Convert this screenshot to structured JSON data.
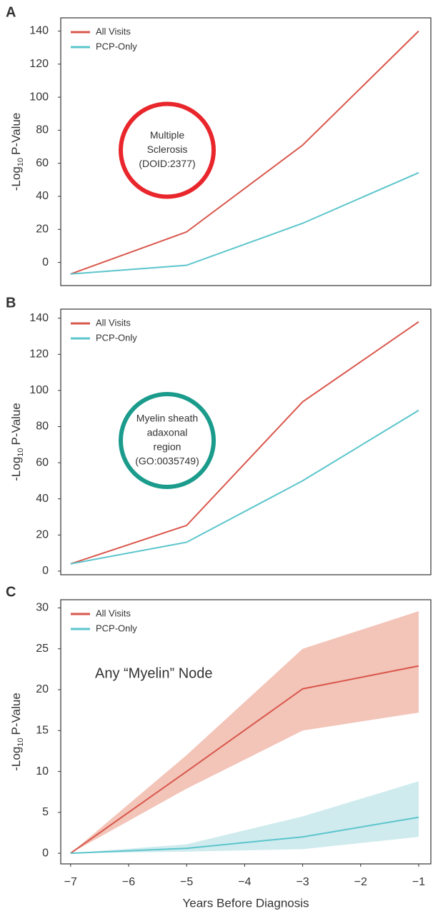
{
  "chart_data": [
    {
      "type": "line",
      "panel": "A",
      "x": [
        -7,
        -5,
        -3,
        -1
      ],
      "xlim": [
        -7.17,
        -0.79
      ],
      "ylim": [
        -14,
        148
      ],
      "yticks": [
        0,
        20,
        40,
        60,
        80,
        100,
        120,
        140
      ],
      "ylabel": {
        "base": "-Log",
        "subscript": "10",
        "rest": "P-Value"
      },
      "legend": "upper-left",
      "annotation": {
        "lines": [
          "Multiple",
          "Sclerosis",
          "(DOID:2377)"
        ],
        "circle_color": "#e8262b"
      },
      "series": [
        {
          "name": "All Visits",
          "color": "#d9574c",
          "values": [
            -7,
            18.5,
            71,
            140
          ]
        },
        {
          "name": "PCP-Only",
          "color": "#5bc5cc",
          "values": [
            -7,
            -1.7,
            23.7,
            54.3
          ]
        }
      ]
    },
    {
      "type": "line",
      "panel": "B",
      "x": [
        -7,
        -5,
        -3,
        -1
      ],
      "xlim": [
        -7.17,
        -0.79
      ],
      "ylim": [
        -2,
        145
      ],
      "yticks": [
        0,
        20,
        40,
        60,
        80,
        100,
        120,
        140
      ],
      "ylabel": {
        "base": "-Log",
        "subscript": "10",
        "rest": "P-Value"
      },
      "legend": "upper-left",
      "annotation": {
        "lines": [
          "Myelin sheath",
          "adaxonal",
          "region",
          "(GO:0035749)"
        ],
        "circle_color": "#1a9b8c"
      },
      "series": [
        {
          "name": "All Visits",
          "color": "#d9574c",
          "values": [
            4,
            25.3,
            93.7,
            138
          ]
        },
        {
          "name": "PCP-Only",
          "color": "#5bc5cc",
          "values": [
            4,
            16,
            50,
            89
          ]
        }
      ]
    },
    {
      "type": "line",
      "panel": "C",
      "x": [
        -7,
        -5,
        -3,
        -1
      ],
      "xlim": [
        -7.17,
        -0.79
      ],
      "xticks": [
        {
          "value": -7,
          "label": "−7"
        },
        {
          "value": -6,
          "label": "−6"
        },
        {
          "value": -5,
          "label": "−5"
        },
        {
          "value": -4,
          "label": "−4"
        },
        {
          "value": -3,
          "label": "−3"
        },
        {
          "value": -2,
          "label": "−2"
        },
        {
          "value": -1,
          "label": "−1"
        }
      ],
      "xlabel": "Years Before Diagnosis",
      "ylim": [
        -1.3,
        31
      ],
      "yticks": [
        0,
        5,
        10,
        15,
        20,
        25,
        30
      ],
      "ylabel": {
        "base": "-Log",
        "subscript": "10",
        "rest": "P-Value"
      },
      "legend": "upper-left",
      "annotation": {
        "lines": [
          "Any “Myelin” Node"
        ]
      },
      "series": [
        {
          "name": "All Visits",
          "color": "#d9574c",
          "band_color": "#f3c4b8",
          "values": [
            0,
            10,
            20.1,
            22.9
          ],
          "upper": [
            0,
            12,
            25,
            29.6
          ],
          "lower": [
            0,
            7.9,
            15,
            17.2
          ]
        },
        {
          "name": "PCP-Only",
          "color": "#5bc5cc",
          "band_color": "#cfebee",
          "values": [
            0,
            0.6,
            2,
            4.4
          ],
          "upper": [
            0,
            1.1,
            4.5,
            8.8
          ],
          "lower": [
            0,
            0.2,
            0.5,
            2
          ]
        }
      ]
    }
  ]
}
